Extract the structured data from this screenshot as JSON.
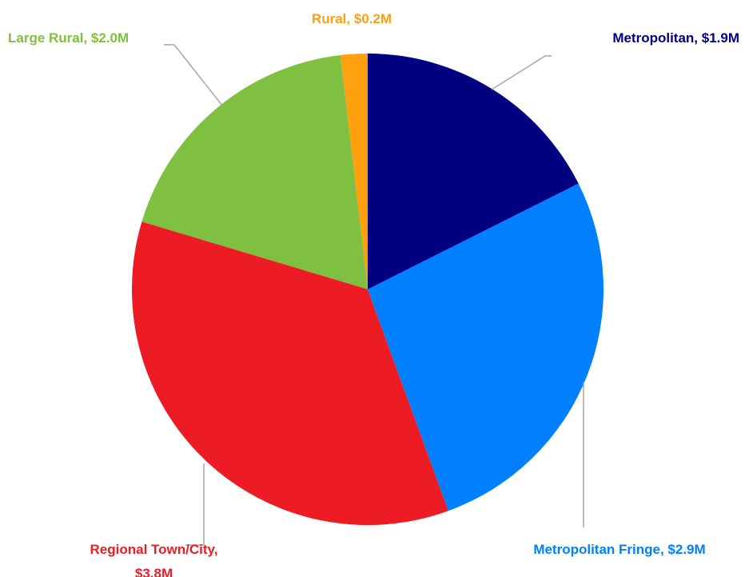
{
  "chart_data": {
    "type": "pie",
    "values": [
      1.9,
      2.9,
      3.8,
      2.0,
      0.2
    ],
    "value_labels": [
      "Metropolitan, $1.9M",
      "Metropolitan Fringe, $2.9M",
      "Regional Town/City, $3.8M",
      "Large Rural, $2.0M",
      "Rural, $0.2M"
    ],
    "colors": [
      "#000080",
      "#0080ff",
      "#ed1c24",
      "#80c040",
      "#ffa010"
    ]
  }
}
